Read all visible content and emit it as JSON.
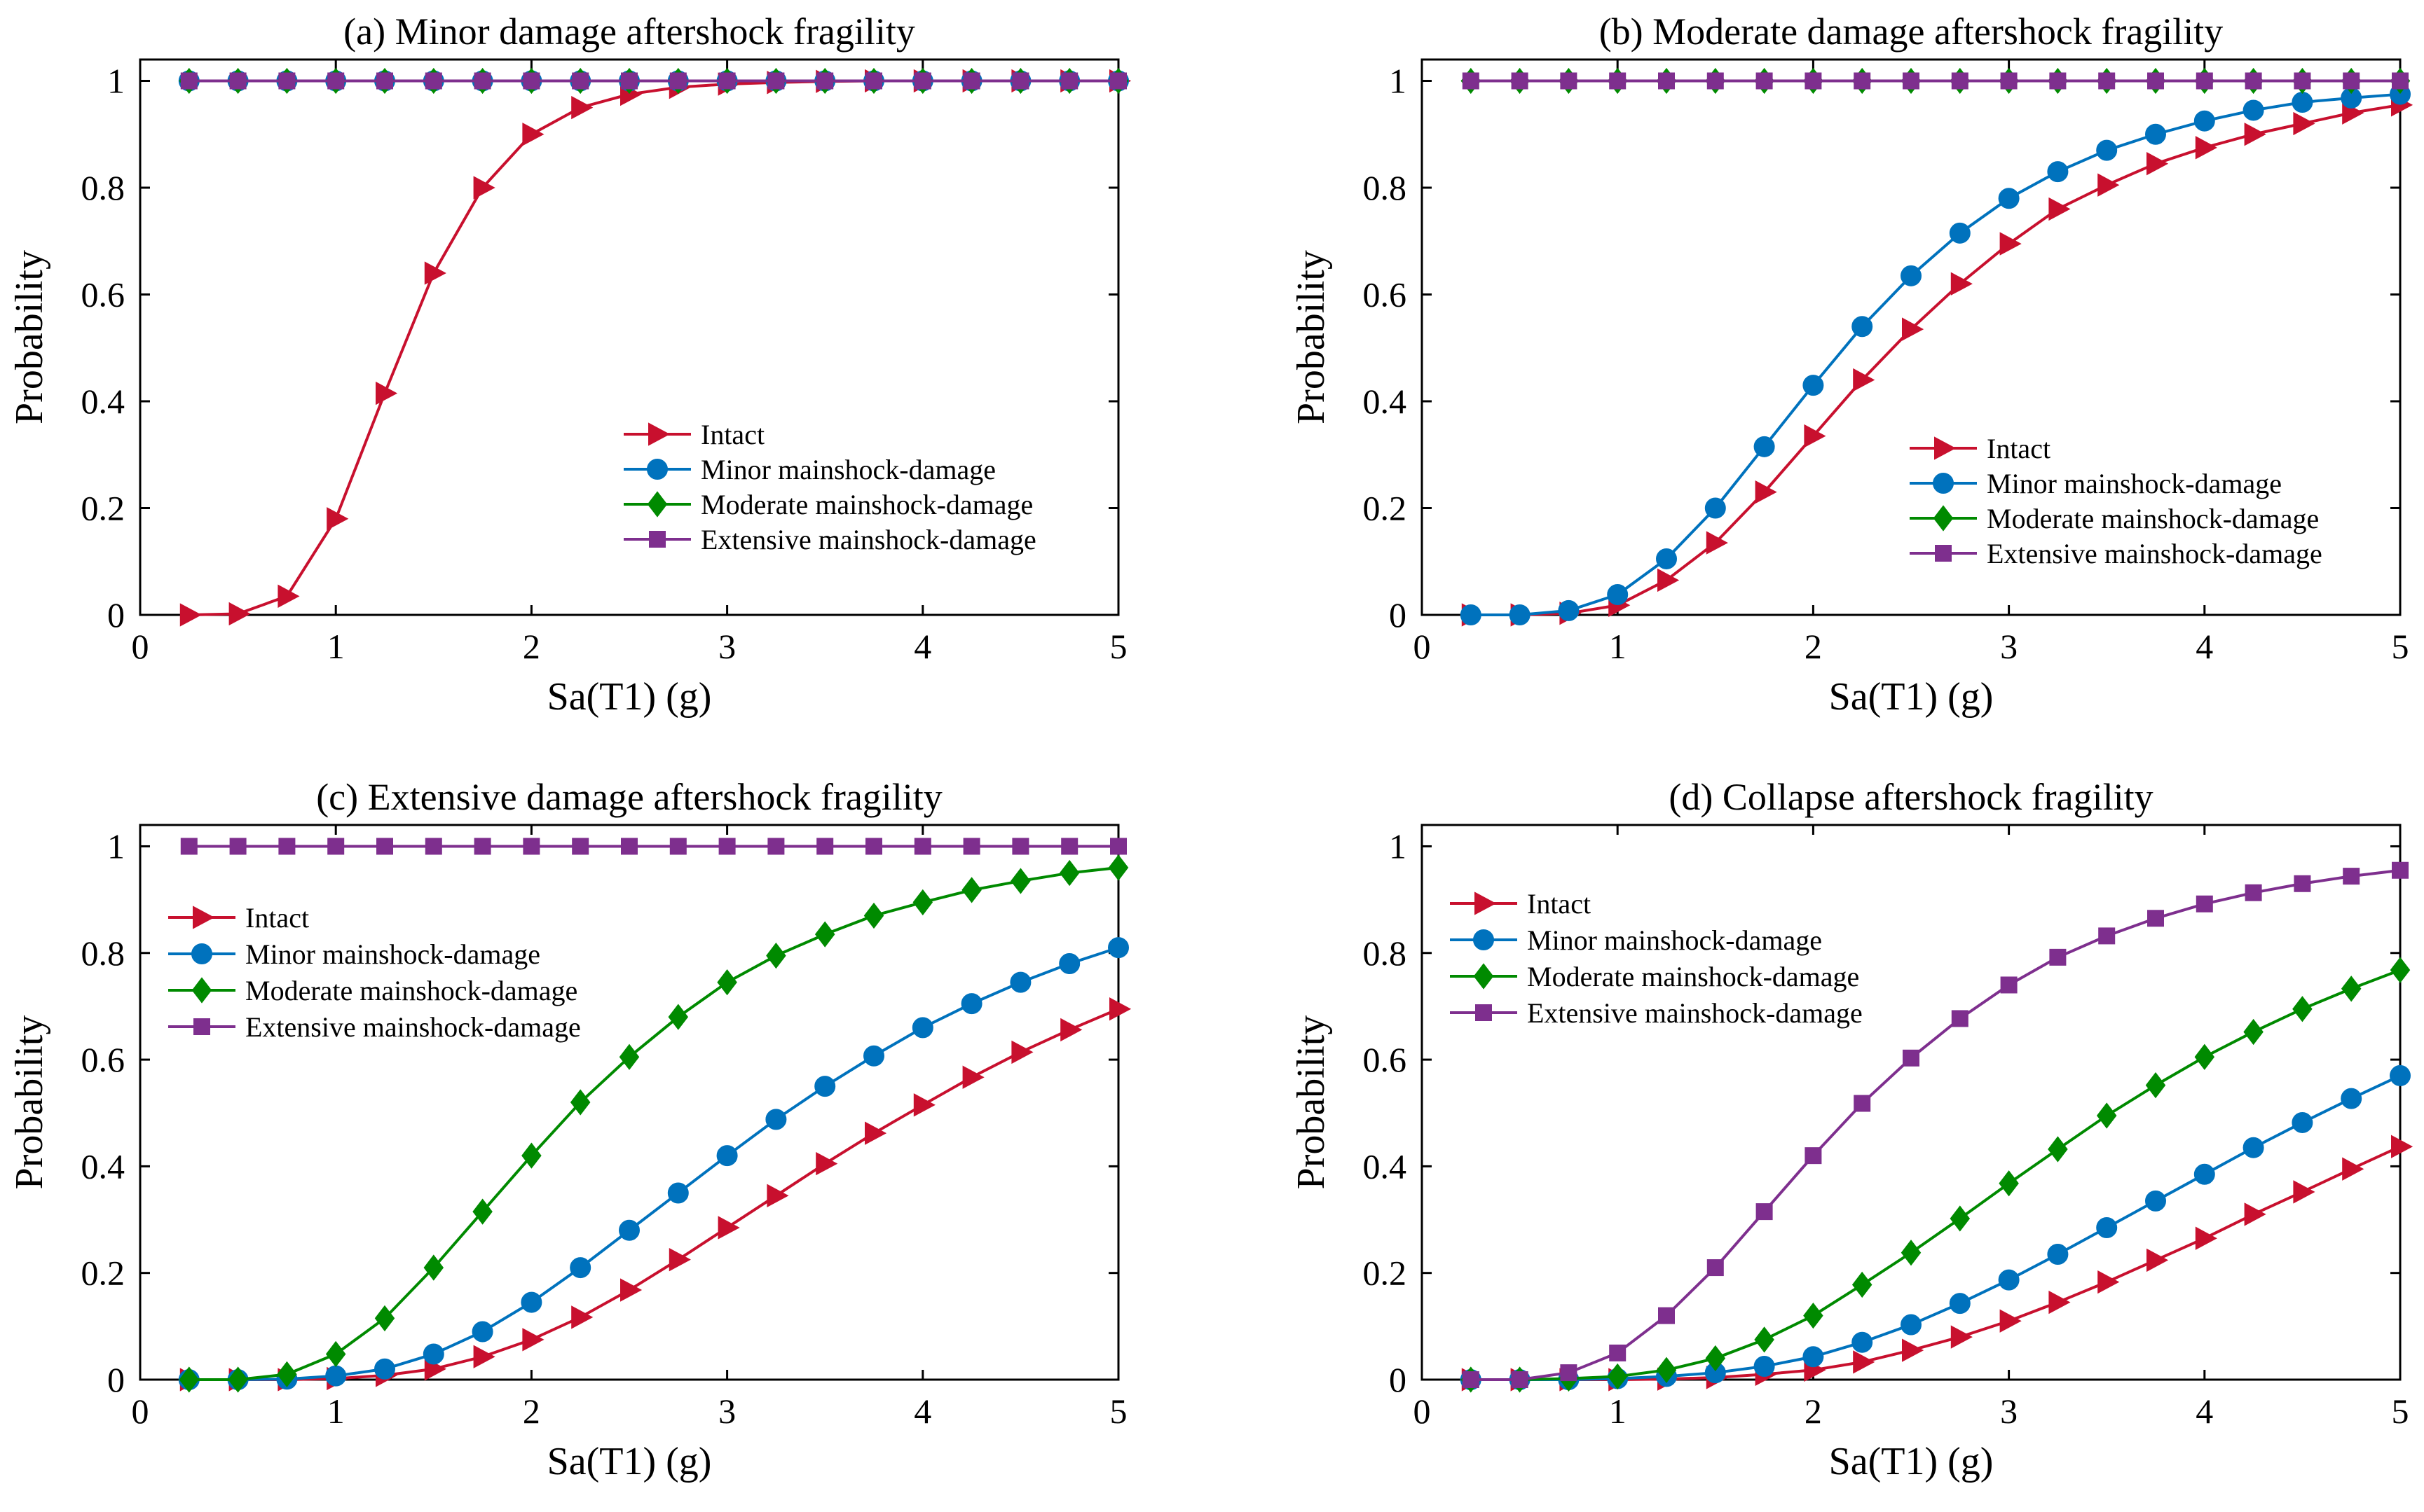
{
  "figure": {
    "background": "#ffffff"
  },
  "styles": {
    "Intact": {
      "color": "#c8102e",
      "marker": "triangle-right"
    },
    "Minor mainshock-damage": {
      "color": "#0072bd",
      "marker": "circle"
    },
    "Moderate mainshock-damage": {
      "color": "#008a00",
      "marker": "diamond"
    },
    "Extensive mainshock-damage": {
      "color": "#7e2f8e",
      "marker": "square"
    }
  },
  "chart_data": [
    {
      "type": "line",
      "title": "(a) Minor damage aftershock fragility",
      "xlabel": "Sa(T1) (g)",
      "ylabel": "Probability",
      "xlim": [
        0,
        5
      ],
      "ylim": [
        0,
        1.04
      ],
      "xticks": [
        "0",
        "1",
        "2",
        "3",
        "4",
        "5"
      ],
      "yticks": [
        "0",
        "0.2",
        "0.4",
        "0.6",
        "0.8",
        "1"
      ],
      "legend_position": "lower-right",
      "x": [
        0.25,
        0.5,
        0.75,
        1.0,
        1.25,
        1.5,
        1.75,
        2.0,
        2.25,
        2.5,
        2.75,
        3.0,
        3.25,
        3.5,
        3.75,
        4.0,
        4.25,
        4.5,
        4.75,
        5.0
      ],
      "series": [
        {
          "name": "Intact",
          "values": [
            0,
            0.002,
            0.035,
            0.18,
            0.415,
            0.64,
            0.8,
            0.9,
            0.95,
            0.975,
            0.988,
            0.994,
            0.997,
            0.999,
            1,
            1,
            1,
            1,
            1,
            1
          ]
        },
        {
          "name": "Minor mainshock-damage",
          "values": [
            1,
            1,
            1,
            1,
            1,
            1,
            1,
            1,
            1,
            1,
            1,
            1,
            1,
            1,
            1,
            1,
            1,
            1,
            1,
            1
          ]
        },
        {
          "name": "Moderate mainshock-damage",
          "values": [
            1,
            1,
            1,
            1,
            1,
            1,
            1,
            1,
            1,
            1,
            1,
            1,
            1,
            1,
            1,
            1,
            1,
            1,
            1,
            1
          ]
        },
        {
          "name": "Extensive mainshock-damage",
          "values": [
            1,
            1,
            1,
            1,
            1,
            1,
            1,
            1,
            1,
            1,
            1,
            1,
            1,
            1,
            1,
            1,
            1,
            1,
            1,
            1
          ]
        }
      ]
    },
    {
      "type": "line",
      "title": "(b) Moderate damage aftershock fragility",
      "xlabel": "Sa(T1) (g)",
      "ylabel": "Probability",
      "xlim": [
        0,
        5
      ],
      "ylim": [
        0,
        1.04
      ],
      "xticks": [
        "0",
        "1",
        "2",
        "3",
        "4",
        "5"
      ],
      "yticks": [
        "0",
        "0.2",
        "0.4",
        "0.6",
        "0.8",
        "1"
      ],
      "legend_position": "lower-right",
      "x": [
        0.25,
        0.5,
        0.75,
        1.0,
        1.25,
        1.5,
        1.75,
        2.0,
        2.25,
        2.5,
        2.75,
        3.0,
        3.25,
        3.5,
        3.75,
        4.0,
        4.25,
        4.5,
        4.75,
        5.0
      ],
      "series": [
        {
          "name": "Intact",
          "values": [
            0,
            0,
            0.003,
            0.018,
            0.065,
            0.135,
            0.23,
            0.335,
            0.44,
            0.535,
            0.62,
            0.695,
            0.76,
            0.805,
            0.845,
            0.875,
            0.9,
            0.92,
            0.94,
            0.955
          ]
        },
        {
          "name": "Minor mainshock-damage",
          "values": [
            0,
            0,
            0.008,
            0.038,
            0.105,
            0.2,
            0.315,
            0.43,
            0.54,
            0.635,
            0.715,
            0.78,
            0.83,
            0.87,
            0.9,
            0.925,
            0.945,
            0.96,
            0.968,
            0.975
          ]
        },
        {
          "name": "Moderate mainshock-damage",
          "values": [
            1,
            1,
            1,
            1,
            1,
            1,
            1,
            1,
            1,
            1,
            1,
            1,
            1,
            1,
            1,
            1,
            1,
            1,
            1,
            1
          ]
        },
        {
          "name": "Extensive mainshock-damage",
          "values": [
            1,
            1,
            1,
            1,
            1,
            1,
            1,
            1,
            1,
            1,
            1,
            1,
            1,
            1,
            1,
            1,
            1,
            1,
            1,
            1
          ]
        }
      ]
    },
    {
      "type": "line",
      "title": "(c) Extensive damage aftershock fragility",
      "xlabel": "Sa(T1) (g)",
      "ylabel": "Probability",
      "xlim": [
        0,
        5
      ],
      "ylim": [
        0,
        1.04
      ],
      "xticks": [
        "0",
        "1",
        "2",
        "3",
        "4",
        "5"
      ],
      "yticks": [
        "0",
        "0.2",
        "0.4",
        "0.6",
        "0.8",
        "1"
      ],
      "legend_position": "upper-left",
      "x": [
        0.25,
        0.5,
        0.75,
        1.0,
        1.25,
        1.5,
        1.75,
        2.0,
        2.25,
        2.5,
        2.75,
        3.0,
        3.25,
        3.5,
        3.75,
        4.0,
        4.25,
        4.5,
        4.75,
        5.0
      ],
      "series": [
        {
          "name": "Intact",
          "values": [
            0,
            0,
            0,
            0.002,
            0.008,
            0.02,
            0.043,
            0.075,
            0.117,
            0.168,
            0.225,
            0.285,
            0.345,
            0.405,
            0.462,
            0.515,
            0.567,
            0.614,
            0.656,
            0.695
          ]
        },
        {
          "name": "Minor mainshock-damage",
          "values": [
            0,
            0,
            0.001,
            0.007,
            0.02,
            0.048,
            0.09,
            0.145,
            0.21,
            0.28,
            0.35,
            0.42,
            0.488,
            0.55,
            0.607,
            0.66,
            0.705,
            0.745,
            0.78,
            0.81
          ]
        },
        {
          "name": "Moderate mainshock-damage",
          "values": [
            0,
            0,
            0.01,
            0.048,
            0.115,
            0.21,
            0.315,
            0.42,
            0.52,
            0.605,
            0.68,
            0.745,
            0.795,
            0.835,
            0.87,
            0.895,
            0.918,
            0.935,
            0.95,
            0.96
          ]
        },
        {
          "name": "Extensive mainshock-damage",
          "values": [
            1,
            1,
            1,
            1,
            1,
            1,
            1,
            1,
            1,
            1,
            1,
            1,
            1,
            1,
            1,
            1,
            1,
            1,
            1,
            1
          ]
        }
      ]
    },
    {
      "type": "line",
      "title": "(d) Collapse aftershock fragility",
      "xlabel": "Sa(T1) (g)",
      "ylabel": "Probability",
      "xlim": [
        0,
        5
      ],
      "ylim": [
        0,
        1.04
      ],
      "xticks": [
        "0",
        "1",
        "2",
        "3",
        "4",
        "5"
      ],
      "yticks": [
        "0",
        "0.2",
        "0.4",
        "0.6",
        "0.8",
        "1"
      ],
      "legend_position": "upper-left",
      "x": [
        0.25,
        0.5,
        0.75,
        1.0,
        1.25,
        1.5,
        1.75,
        2.0,
        2.25,
        2.5,
        2.75,
        3.0,
        3.25,
        3.5,
        3.75,
        4.0,
        4.25,
        4.5,
        4.75,
        5.0
      ],
      "series": [
        {
          "name": "Intact",
          "values": [
            0,
            0,
            0,
            0,
            0.001,
            0.004,
            0.01,
            0.018,
            0.033,
            0.055,
            0.08,
            0.11,
            0.145,
            0.183,
            0.224,
            0.265,
            0.31,
            0.352,
            0.395,
            0.437
          ]
        },
        {
          "name": "Minor mainshock-damage",
          "values": [
            0,
            0,
            0,
            0.002,
            0.006,
            0.013,
            0.025,
            0.043,
            0.07,
            0.103,
            0.143,
            0.187,
            0.235,
            0.285,
            0.335,
            0.385,
            0.435,
            0.482,
            0.527,
            0.57
          ]
        },
        {
          "name": "Moderate mainshock-damage",
          "values": [
            0,
            0,
            0.002,
            0.006,
            0.018,
            0.04,
            0.075,
            0.12,
            0.178,
            0.238,
            0.302,
            0.368,
            0.432,
            0.495,
            0.552,
            0.605,
            0.652,
            0.695,
            0.733,
            0.768
          ]
        },
        {
          "name": "Extensive mainshock-damage",
          "values": [
            0,
            0,
            0.013,
            0.05,
            0.12,
            0.21,
            0.315,
            0.42,
            0.518,
            0.603,
            0.677,
            0.74,
            0.792,
            0.832,
            0.865,
            0.892,
            0.913,
            0.93,
            0.944,
            0.955
          ]
        }
      ]
    }
  ]
}
